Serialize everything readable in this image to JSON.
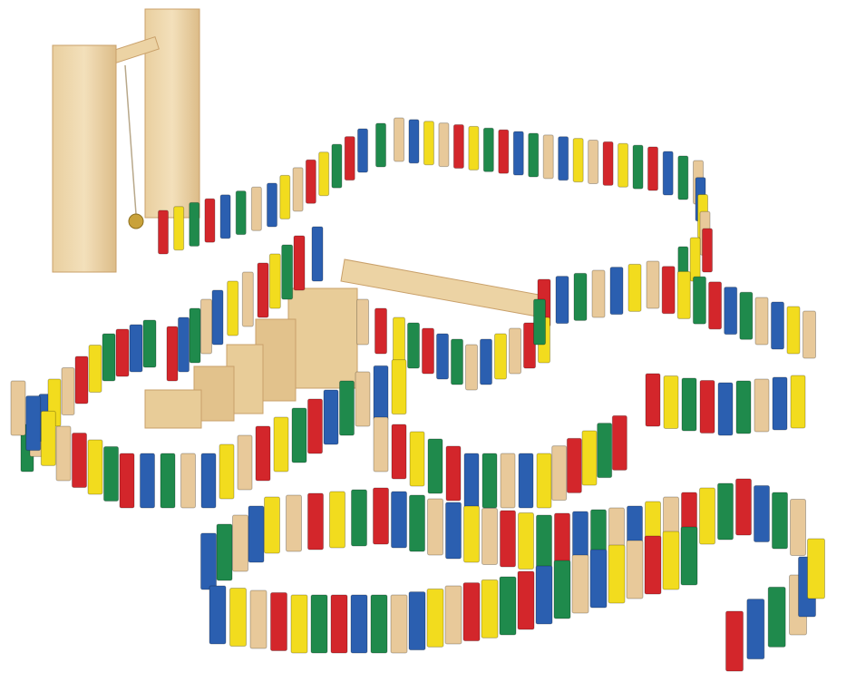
{
  "photo": {
    "subject": "",
    "palette": {
      "red": "#d3262b",
      "blue": "#2b5fb0",
      "yellow": "#f2dc1e",
      "green": "#1f8a4c",
      "natural": "#e8c99a",
      "wood_light": "#f1dcb3",
      "wood_mid": "#e2c28c",
      "wood_dark": "#c9a06a",
      "brass": "#c9a23a",
      "background": "#ffffff"
    }
  }
}
